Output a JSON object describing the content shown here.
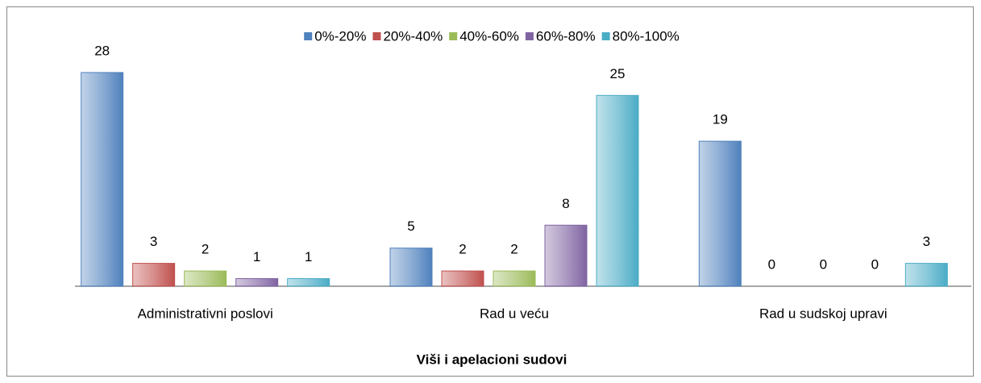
{
  "chart_data": {
    "type": "bar",
    "xlabel": "Viši i apelacioni sudovi",
    "categories": [
      "Administrativni poslovi",
      "Rad u veću",
      "Rad u sudskoj upravi"
    ],
    "series": [
      {
        "name": "0%-20%",
        "color": "#4f81bd",
        "values": [
          28,
          5,
          19
        ]
      },
      {
        "name": "20%-40%",
        "color": "#c0504d",
        "values": [
          3,
          2,
          0
        ]
      },
      {
        "name": "40%-60%",
        "color": "#9bbb59",
        "values": [
          2,
          2,
          0
        ]
      },
      {
        "name": "60%-80%",
        "color": "#8064a2",
        "values": [
          1,
          8,
          0
        ]
      },
      {
        "name": "80%-100%",
        "color": "#4bacc6",
        "values": [
          1,
          25,
          3
        ]
      }
    ],
    "ylim": [
      0,
      30
    ],
    "legend": "top"
  }
}
